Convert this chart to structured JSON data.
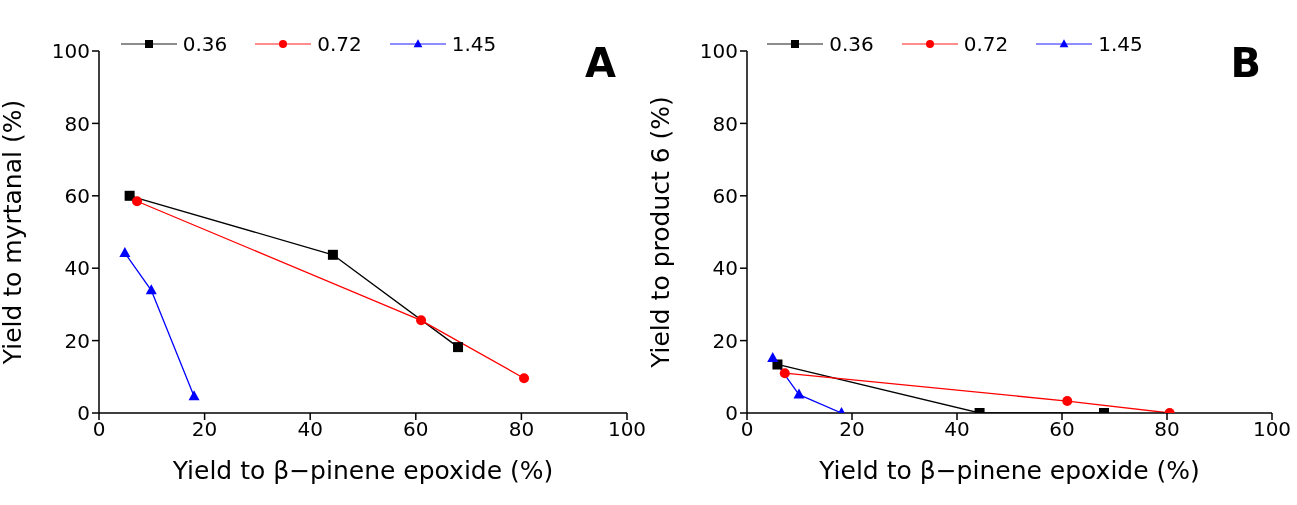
{
  "chart_data": [
    {
      "type": "line",
      "xlabel": "Yield to β−pinene epoxide (%)",
      "ylabel": "Yield to myrtanal (%)",
      "annotations": [
        "A"
      ],
      "xlim": [
        0,
        100
      ],
      "xticks": [
        0,
        20,
        40,
        60,
        80,
        100
      ],
      "ylim": [
        0,
        100
      ],
      "yticks": [
        0,
        20,
        40,
        60,
        80,
        100
      ],
      "legend": "top",
      "series": [
        {
          "name": "0.36",
          "color": "#000000",
          "marker": "square",
          "x": [
            5.8,
            44.3,
            68
          ],
          "values": [
            60,
            43.7,
            18.2
          ]
        },
        {
          "name": "0.72",
          "color": "#ff0000",
          "marker": "circle",
          "x": [
            7.2,
            61,
            80.5
          ],
          "values": [
            58.5,
            25.6,
            9.6
          ]
        },
        {
          "name": "1.45",
          "color": "#0000ff",
          "marker": "triangle",
          "x": [
            4.9,
            9.9,
            18
          ],
          "values": [
            44.2,
            33.9,
            4.6
          ]
        }
      ]
    },
    {
      "type": "line",
      "xlabel": "Yield to β−pinene epoxide (%)",
      "ylabel": "Yield to product 6 (%)",
      "annotations": [
        "B"
      ],
      "xlim": [
        0,
        100
      ],
      "xticks": [
        0,
        20,
        40,
        60,
        80,
        100
      ],
      "ylim": [
        0,
        100
      ],
      "yticks": [
        0,
        20,
        40,
        60,
        80,
        100
      ],
      "legend": "top",
      "series": [
        {
          "name": "0.36",
          "color": "#000000",
          "marker": "square",
          "x": [
            5.8,
            44.3,
            68
          ],
          "values": [
            13.4,
            0,
            0
          ]
        },
        {
          "name": "0.72",
          "color": "#ff0000",
          "marker": "circle",
          "x": [
            7.2,
            61,
            80.5
          ],
          "values": [
            11,
            3.3,
            0
          ]
        },
        {
          "name": "1.45",
          "color": "#0000ff",
          "marker": "triangle",
          "x": [
            4.9,
            9.9,
            18
          ],
          "values": [
            15.2,
            5.1,
            0
          ]
        }
      ]
    }
  ]
}
